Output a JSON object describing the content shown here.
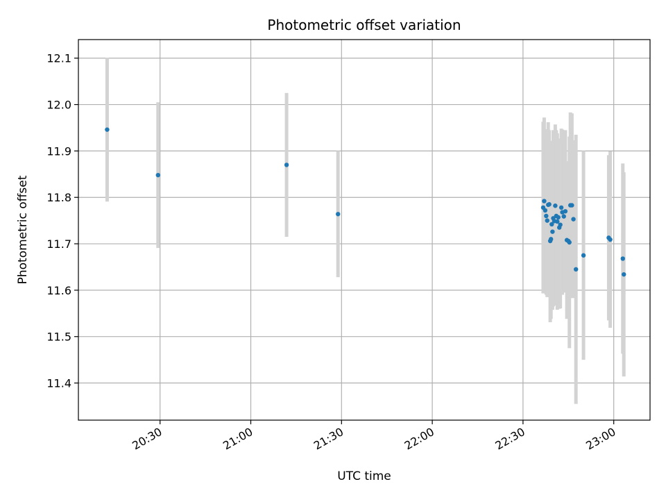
{
  "chart_data": {
    "type": "scatter",
    "title": "Photometric offset variation",
    "xlabel": "UTC time",
    "ylabel": "Photometric offset",
    "x_is_time": true,
    "xlim": [
      "20:03",
      "23:12"
    ],
    "ylim": [
      11.32,
      12.14
    ],
    "x_ticks": [
      "20:30",
      "21:00",
      "21:30",
      "22:00",
      "22:30",
      "23:00"
    ],
    "y_ticks": [
      11.4,
      11.5,
      11.6,
      11.7,
      11.8,
      11.9,
      12.0,
      12.1
    ],
    "grid": true,
    "point_color": "#1f77b4",
    "errorbar_color": "#d3d3d3",
    "series": [
      {
        "points": [
          {
            "t": "20:12:30",
            "y": 11.946,
            "err": 0.155
          },
          {
            "t": "20:29:20",
            "y": 11.848,
            "err": 0.157
          },
          {
            "t": "21:11:50",
            "y": 11.87,
            "err": 0.155
          },
          {
            "t": "21:28:50",
            "y": 11.764,
            "err": 0.136
          },
          {
            "t": "22:36:40",
            "y": 11.778,
            "err": 0.185
          },
          {
            "t": "22:37:00",
            "y": 11.792,
            "err": 0.18
          },
          {
            "t": "22:37:20",
            "y": 11.772,
            "err": 0.175
          },
          {
            "t": "22:37:40",
            "y": 11.76,
            "err": 0.17
          },
          {
            "t": "22:38:00",
            "y": 11.75,
            "err": 0.165
          },
          {
            "t": "22:38:20",
            "y": 11.784,
            "err": 0.178
          },
          {
            "t": "22:38:40",
            "y": 11.785,
            "err": 0.16
          },
          {
            "t": "22:39:00",
            "y": 11.706,
            "err": 0.175
          },
          {
            "t": "22:39:15",
            "y": 11.71,
            "err": 0.172
          },
          {
            "t": "22:39:30",
            "y": 11.742,
            "err": 0.18
          },
          {
            "t": "22:39:45",
            "y": 11.726,
            "err": 0.168
          },
          {
            "t": "22:40:00",
            "y": 11.755,
            "err": 0.19
          },
          {
            "t": "22:40:20",
            "y": 11.749,
            "err": 0.182
          },
          {
            "t": "22:40:40",
            "y": 11.782,
            "err": 0.175
          },
          {
            "t": "22:41:00",
            "y": 11.76,
            "err": 0.185
          },
          {
            "t": "22:41:20",
            "y": 11.748,
            "err": 0.19
          },
          {
            "t": "22:41:40",
            "y": 11.757,
            "err": 0.17
          },
          {
            "t": "22:42:00",
            "y": 11.735,
            "err": 0.175
          },
          {
            "t": "22:42:20",
            "y": 11.741,
            "err": 0.18
          },
          {
            "t": "22:42:40",
            "y": 11.778,
            "err": 0.17
          },
          {
            "t": "22:43:00",
            "y": 11.768,
            "err": 0.178
          },
          {
            "t": "22:43:30",
            "y": 11.759,
            "err": 0.16
          },
          {
            "t": "22:44:00",
            "y": 11.77,
            "err": 0.175
          },
          {
            "t": "22:44:30",
            "y": 11.708,
            "err": 0.17
          },
          {
            "t": "22:45:00",
            "y": 11.706,
            "err": 0.16
          },
          {
            "t": "22:45:20",
            "y": 11.703,
            "err": 0.228
          },
          {
            "t": "22:45:40",
            "y": 11.783,
            "err": 0.2
          },
          {
            "t": "22:46:10",
            "y": 11.783,
            "err": 0.198
          },
          {
            "t": "22:46:40",
            "y": 11.753,
            "err": 0.17
          },
          {
            "t": "22:47:30",
            "y": 11.645,
            "err": 0.29
          },
          {
            "t": "22:50:00",
            "y": 11.675,
            "err": 0.225
          },
          {
            "t": "22:58:20",
            "y": 11.713,
            "err": 0.178
          },
          {
            "t": "22:58:50",
            "y": 11.709,
            "err": 0.19
          },
          {
            "t": "23:03:00",
            "y": 11.668,
            "err": 0.205
          },
          {
            "t": "23:03:20",
            "y": 11.634,
            "err": 0.22
          }
        ]
      }
    ]
  }
}
